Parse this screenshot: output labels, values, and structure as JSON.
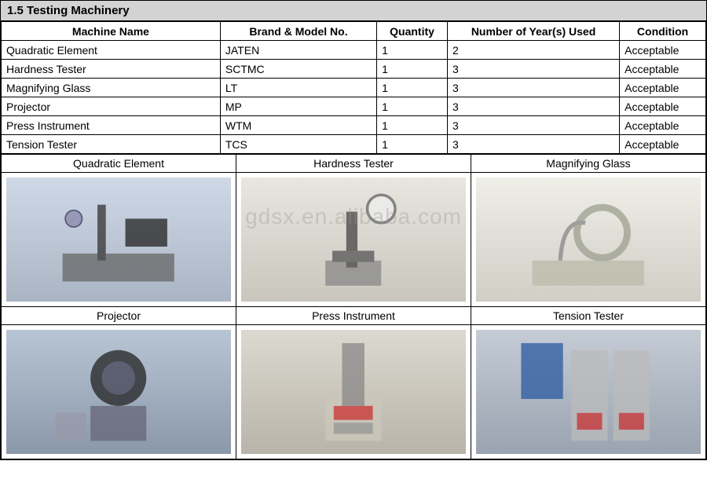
{
  "section_title": "1.5 Testing Machinery",
  "watermark_text": "gdsx.en.alibaba.com",
  "table": {
    "columns": [
      "Machine Name",
      "Brand & Model No.",
      "Quantity",
      "Number of Year(s) Used",
      "Condition"
    ],
    "rows": [
      {
        "name": "Quadratic Element",
        "brand": "JATEN",
        "qty": "1",
        "years": "2",
        "cond": "Acceptable"
      },
      {
        "name": "Hardness Tester",
        "brand": "SCTMC",
        "qty": "1",
        "years": "3",
        "cond": "Acceptable"
      },
      {
        "name": "Magnifying Glass",
        "brand": "LT",
        "qty": "1",
        "years": "3",
        "cond": "Acceptable"
      },
      {
        "name": "Projector",
        "brand": "MP",
        "qty": "1",
        "years": "3",
        "cond": "Acceptable"
      },
      {
        "name": "Press Instrument",
        "brand": "WTM",
        "qty": "1",
        "years": "3",
        "cond": "Acceptable"
      },
      {
        "name": "Tension Tester",
        "brand": "TCS",
        "qty": "1",
        "years": "3",
        "cond": "Acceptable"
      }
    ]
  },
  "photos": {
    "row1": [
      {
        "label": "Quadratic Element"
      },
      {
        "label": "Hardness Tester"
      },
      {
        "label": "Magnifying Glass"
      }
    ],
    "row2": [
      {
        "label": "Projector"
      },
      {
        "label": "Press Instrument"
      },
      {
        "label": "Tension Tester"
      }
    ]
  },
  "colors": {
    "header_bg": "#d3d3d3",
    "border": "#000000",
    "text": "#000000"
  }
}
